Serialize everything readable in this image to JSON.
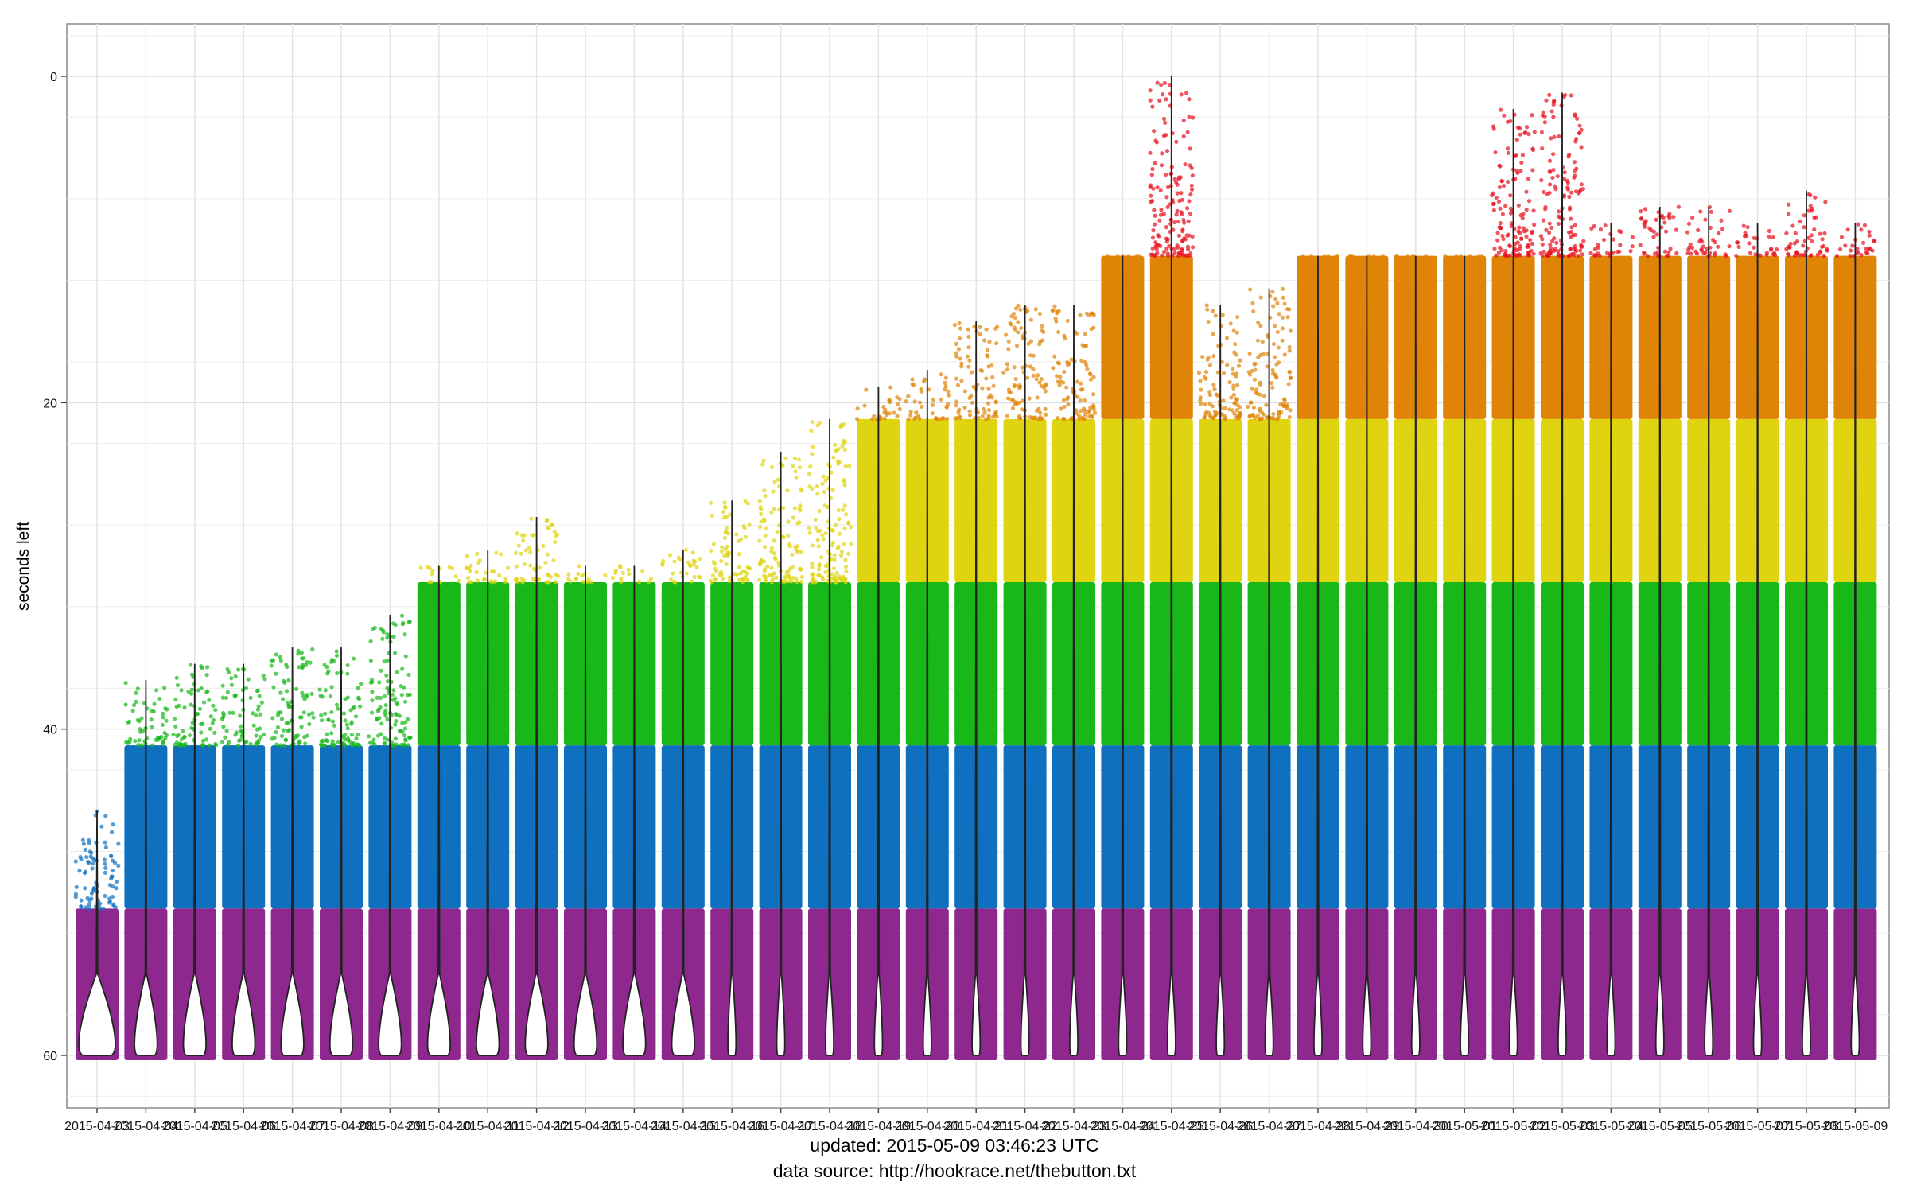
{
  "chart_data": {
    "type": "violin-jitter",
    "ylabel": "seconds left",
    "ylim": [
      0,
      60
    ],
    "y_reversed": true,
    "y_ticks": [
      0,
      20,
      40,
      60
    ],
    "grid": true,
    "legend": "none",
    "categories": [
      "2015-04-03",
      "2015-04-04",
      "2015-04-05",
      "2015-04-06",
      "2015-04-07",
      "2015-04-08",
      "2015-04-09",
      "2015-04-10",
      "2015-04-11",
      "2015-04-12",
      "2015-04-13",
      "2015-04-14",
      "2015-04-15",
      "2015-04-16",
      "2015-04-17",
      "2015-04-18",
      "2015-04-19",
      "2015-04-20",
      "2015-04-21",
      "2015-04-22",
      "2015-04-23",
      "2015-04-24",
      "2015-04-25",
      "2015-04-26",
      "2015-04-27",
      "2015-04-28",
      "2015-04-29",
      "2015-04-30",
      "2015-05-01",
      "2015-05-02",
      "2015-05-03",
      "2015-05-04",
      "2015-05-05",
      "2015-05-06",
      "2015-05-07",
      "2015-05-08",
      "2015-05-09"
    ],
    "min_seconds_left": [
      45,
      37,
      36,
      36,
      35,
      35,
      33,
      30,
      29,
      27,
      30,
      30,
      29,
      26,
      23,
      21,
      19,
      18,
      15,
      14,
      14,
      11,
      0,
      14,
      13,
      11,
      11,
      11,
      11,
      2,
      1,
      9,
      8,
      8,
      9,
      7,
      9
    ],
    "color_bands": [
      {
        "name": "purple",
        "range": [
          51,
          60
        ],
        "color": "#8e288e"
      },
      {
        "name": "blue",
        "range": [
          41,
          51
        ],
        "color": "#1070c0"
      },
      {
        "name": "green",
        "range": [
          31,
          41
        ],
        "color": "#18b818"
      },
      {
        "name": "yellow",
        "range": [
          21,
          31
        ],
        "color": "#e0d410"
      },
      {
        "name": "orange",
        "range": [
          11,
          21
        ],
        "color": "#e08408"
      },
      {
        "name": "red",
        "range": [
          0,
          11
        ],
        "color": "#e8101c"
      }
    ]
  },
  "captions": {
    "updated": "updated: 2015-05-09 03:46:23 UTC",
    "source": "data source: http://hookrace.net/thebutton.txt"
  }
}
